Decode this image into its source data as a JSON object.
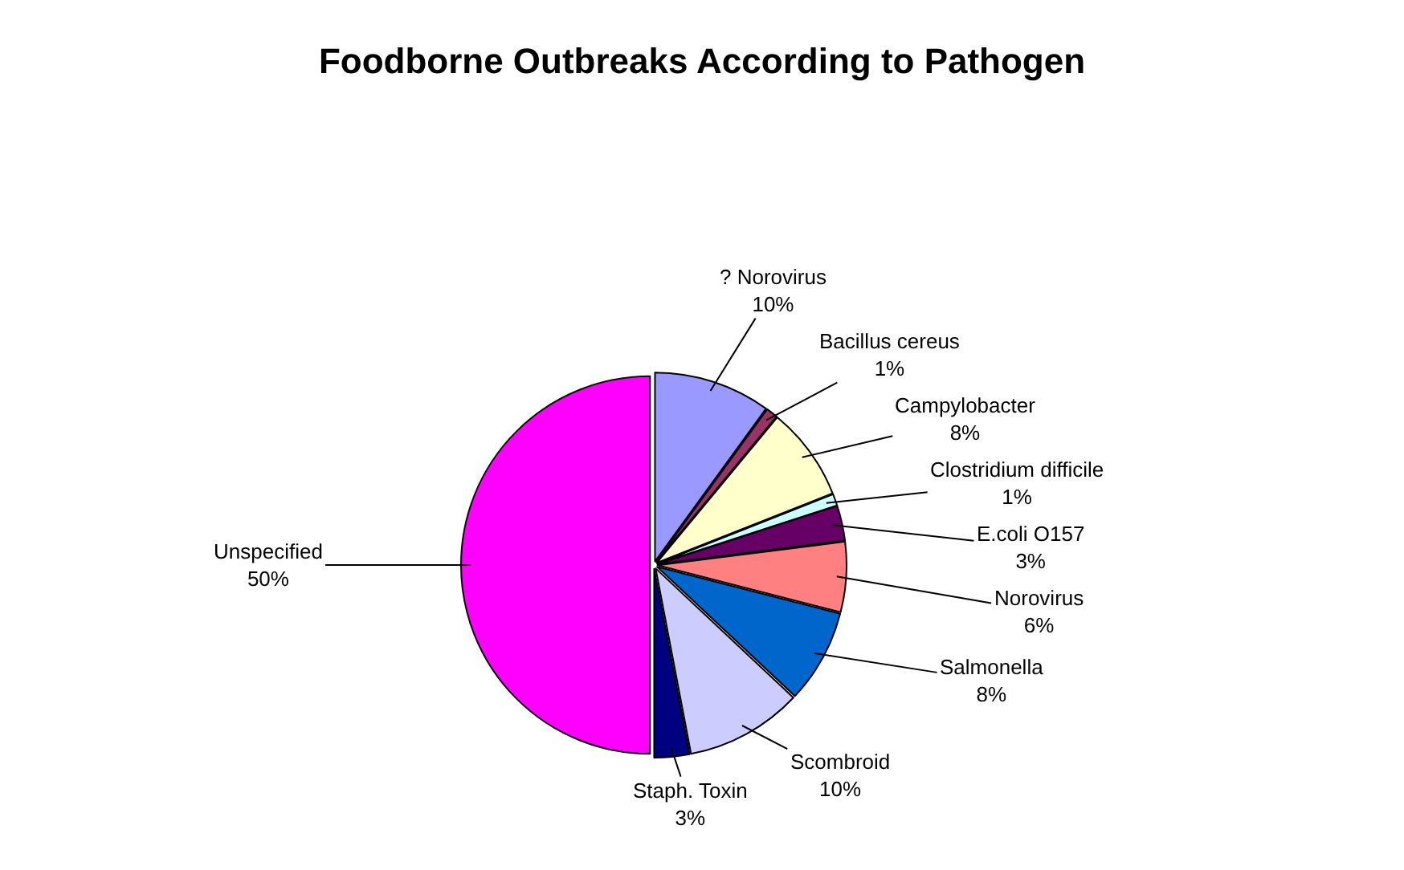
{
  "chart_data": {
    "type": "pie",
    "title": "Foodborne Outbreaks According to Pathogen",
    "categories": [
      "? Norovirus",
      "Bacillus cereus",
      "Campylobacter",
      "Clostridium difficile",
      "E.coli O157",
      "Norovirus",
      "Salmonella",
      "Scombroid",
      "Staph. Toxin",
      "Unspecified"
    ],
    "values": [
      10,
      1,
      8,
      1,
      3,
      6,
      8,
      10,
      3,
      50
    ],
    "value_labels": [
      "10%",
      "1%",
      "8%",
      "1%",
      "3%",
      "6%",
      "8%",
      "10%",
      "3%",
      "50%"
    ],
    "colors": [
      "#9999ff",
      "#993366",
      "#ffffcc",
      "#ccffff",
      "#660066",
      "#ff8080",
      "#0066cc",
      "#ccccff",
      "#000080",
      "#ff00ff"
    ]
  }
}
